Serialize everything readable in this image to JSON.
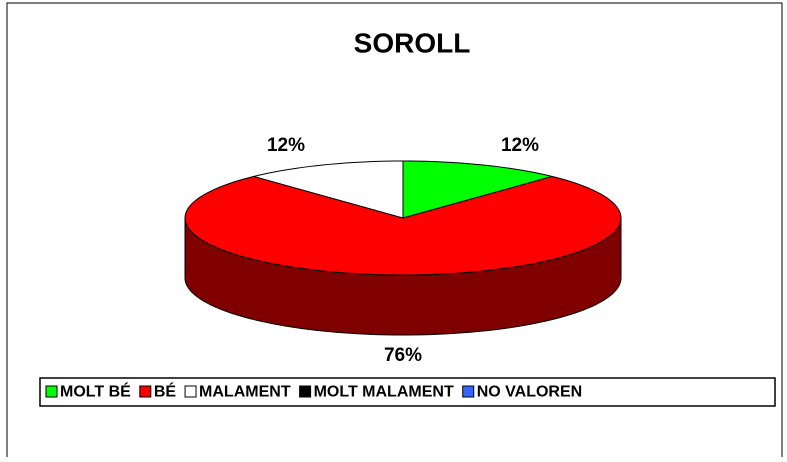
{
  "chart_data": {
    "type": "pie",
    "title": "SOROLL",
    "categories": [
      "MOLT BÉ",
      "BÉ",
      "MALAMENT",
      "MOLT MALAMENT",
      "NO VALOREN"
    ],
    "values": [
      12,
      76,
      12,
      0,
      0
    ],
    "value_labels": [
      "12%",
      "76%",
      "12%",
      null,
      null
    ],
    "colors": [
      "#00ff00",
      "#ff0000",
      "#ffffff",
      "#000000",
      "#3366ff"
    ],
    "legend": "bottom"
  }
}
